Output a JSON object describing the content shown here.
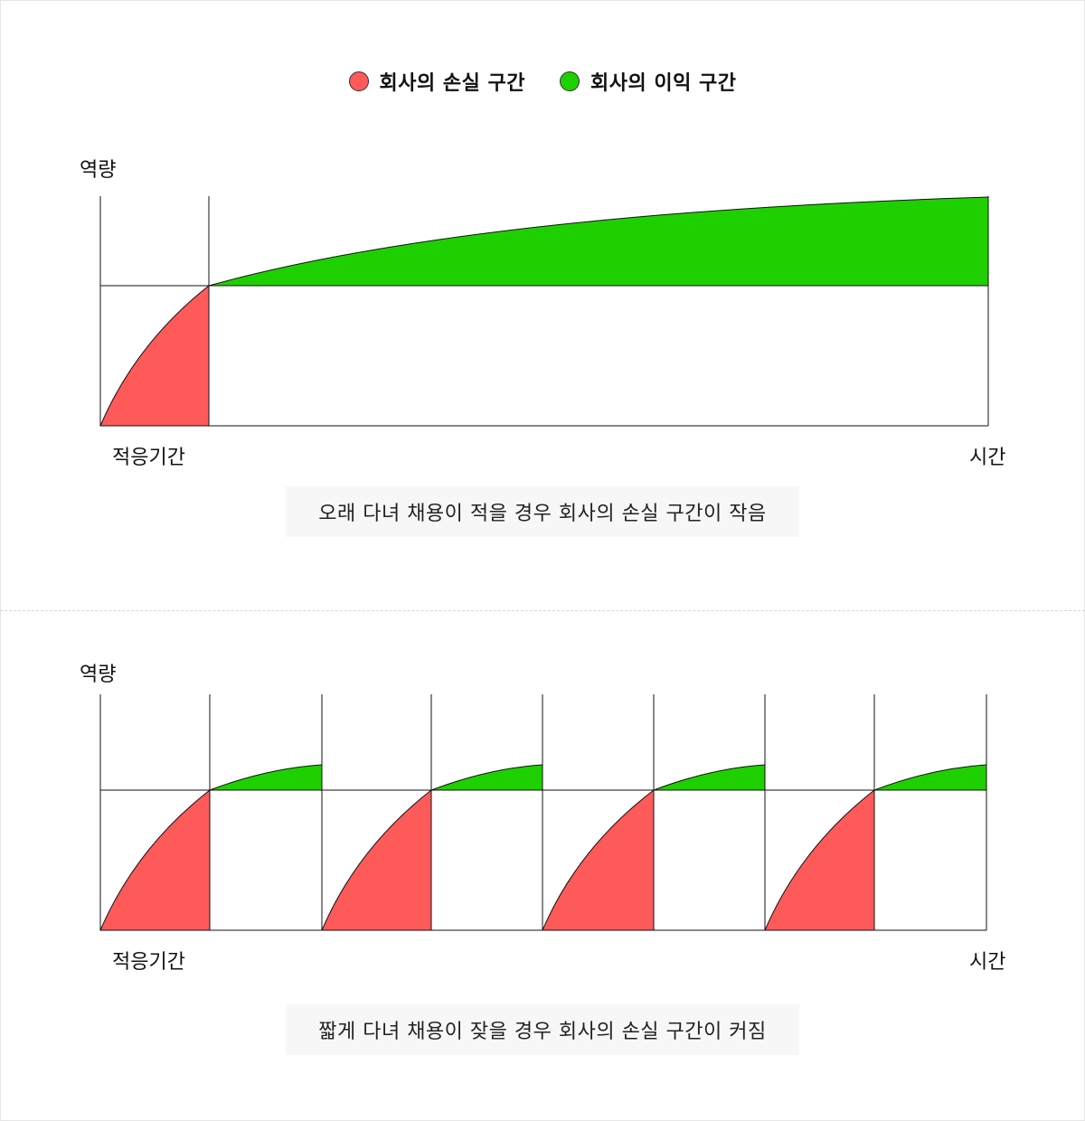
{
  "legend": {
    "loss_label": "회사의 손실 구간",
    "profit_label": "회사의 이익 구간"
  },
  "colors": {
    "loss": "#fe5a5a",
    "profit": "#1fd000",
    "caption_bg": "#f7f7f7"
  },
  "top_diagram": {
    "y_axis_label": "역량",
    "adaptation_label": "적응기간",
    "time_label": "시간",
    "caption": "오래 다녀 채용이 적을 경우 회사의 손실 구간이 작음"
  },
  "bottom_diagram": {
    "y_axis_label": "역량",
    "adaptation_label": "적응기간",
    "time_label": "시간",
    "caption": "짧게 다녀 채용이 잦을 경우 회사의 손실 구간이 커짐",
    "hire_cycles": 4
  }
}
